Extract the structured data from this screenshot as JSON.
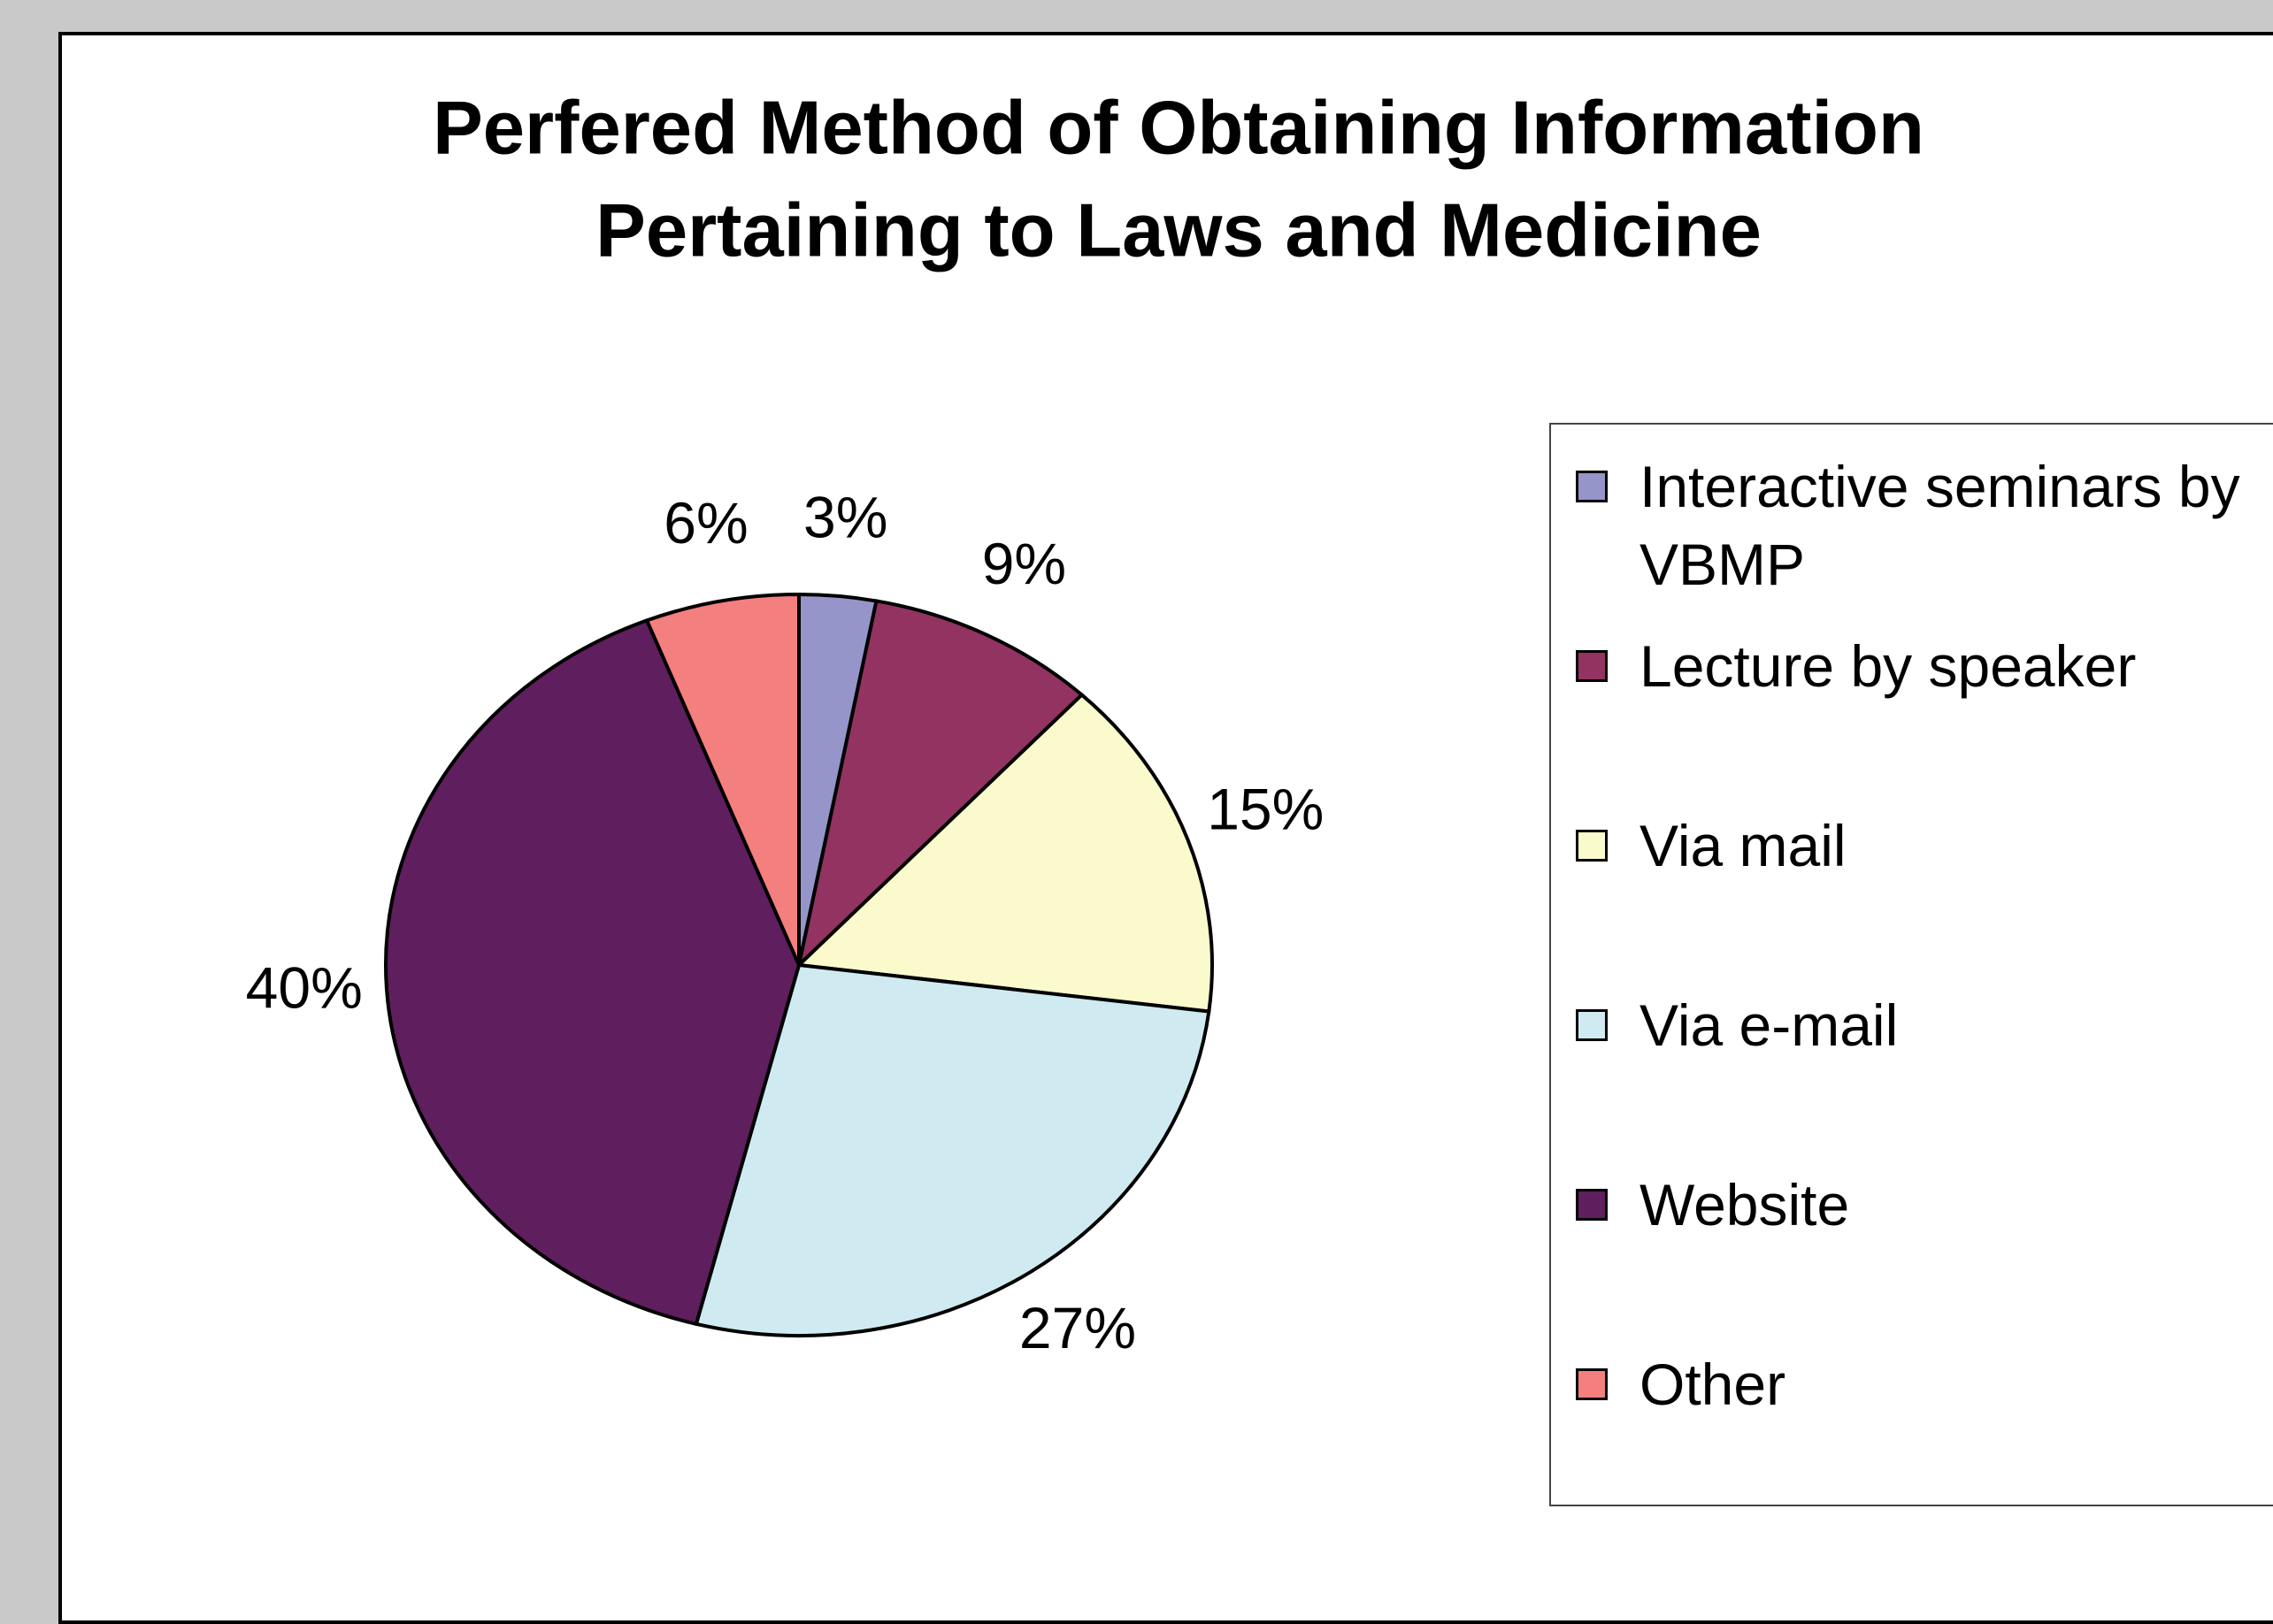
{
  "chart_data": {
    "type": "pie",
    "title": [
      "Perfered Method of Obtaining Information",
      "Pertaining to Laws and Medicine"
    ],
    "categories": [
      "Interactive seminars by VBMP",
      "Lecture by speaker",
      "Via mail",
      "Via e-mail",
      "Website",
      "Other"
    ],
    "values": [
      3,
      9,
      15,
      27,
      40,
      6
    ],
    "colors": [
      "#9595c9",
      "#933361",
      "#fafacc",
      "#cfeaf0",
      "#5f1e5e",
      "#f47f7f"
    ],
    "legend": "right"
  }
}
